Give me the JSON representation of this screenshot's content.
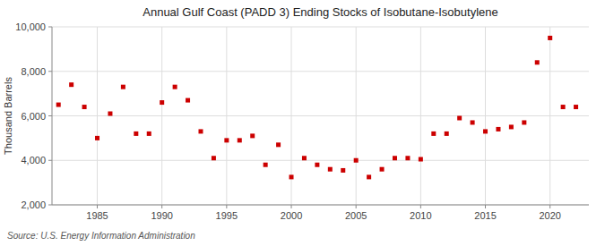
{
  "chart_data": {
    "type": "scatter",
    "title": "Annual Gulf Coast (PADD 3) Ending Stocks of Isobutane-Isobutylene",
    "ylabel": "Thousand Barrels",
    "annotations": [
      "Source: U.S. Energy Information Administration"
    ],
    "x": [
      1982,
      1983,
      1984,
      1985,
      1986,
      1987,
      1988,
      1989,
      1990,
      1991,
      1992,
      1993,
      1994,
      1995,
      1996,
      1997,
      1998,
      1999,
      2000,
      2001,
      2002,
      2003,
      2004,
      2005,
      2006,
      2007,
      2008,
      2009,
      2010,
      2011,
      2012,
      2013,
      2014,
      2015,
      2016,
      2017,
      2018,
      2019,
      2020,
      2021,
      2022
    ],
    "values": [
      6500,
      7400,
      6400,
      5000,
      6100,
      7300,
      5200,
      5200,
      6600,
      7300,
      6700,
      5300,
      4100,
      4900,
      4900,
      5100,
      3800,
      4700,
      3250,
      4100,
      3800,
      3600,
      3550,
      4000,
      3250,
      3600,
      4100,
      4100,
      4050,
      5200,
      5200,
      5900,
      5700,
      5300,
      5400,
      5500,
      5700,
      8400,
      9500,
      6400,
      6400
    ],
    "color": "#cc0000",
    "marker": "square",
    "xlim": [
      1981.5,
      2023
    ],
    "ylim": [
      2000,
      10000
    ],
    "xticks": [
      1985,
      1990,
      1995,
      2000,
      2005,
      2010,
      2015,
      2020
    ],
    "yticks": [
      {
        "value": 2000,
        "label": "2,000"
      },
      {
        "value": 4000,
        "label": "4,000"
      },
      {
        "value": 6000,
        "label": "6,000"
      },
      {
        "value": 8000,
        "label": "8,000"
      },
      {
        "value": 10000,
        "label": "10,000"
      }
    ],
    "grid": true
  }
}
